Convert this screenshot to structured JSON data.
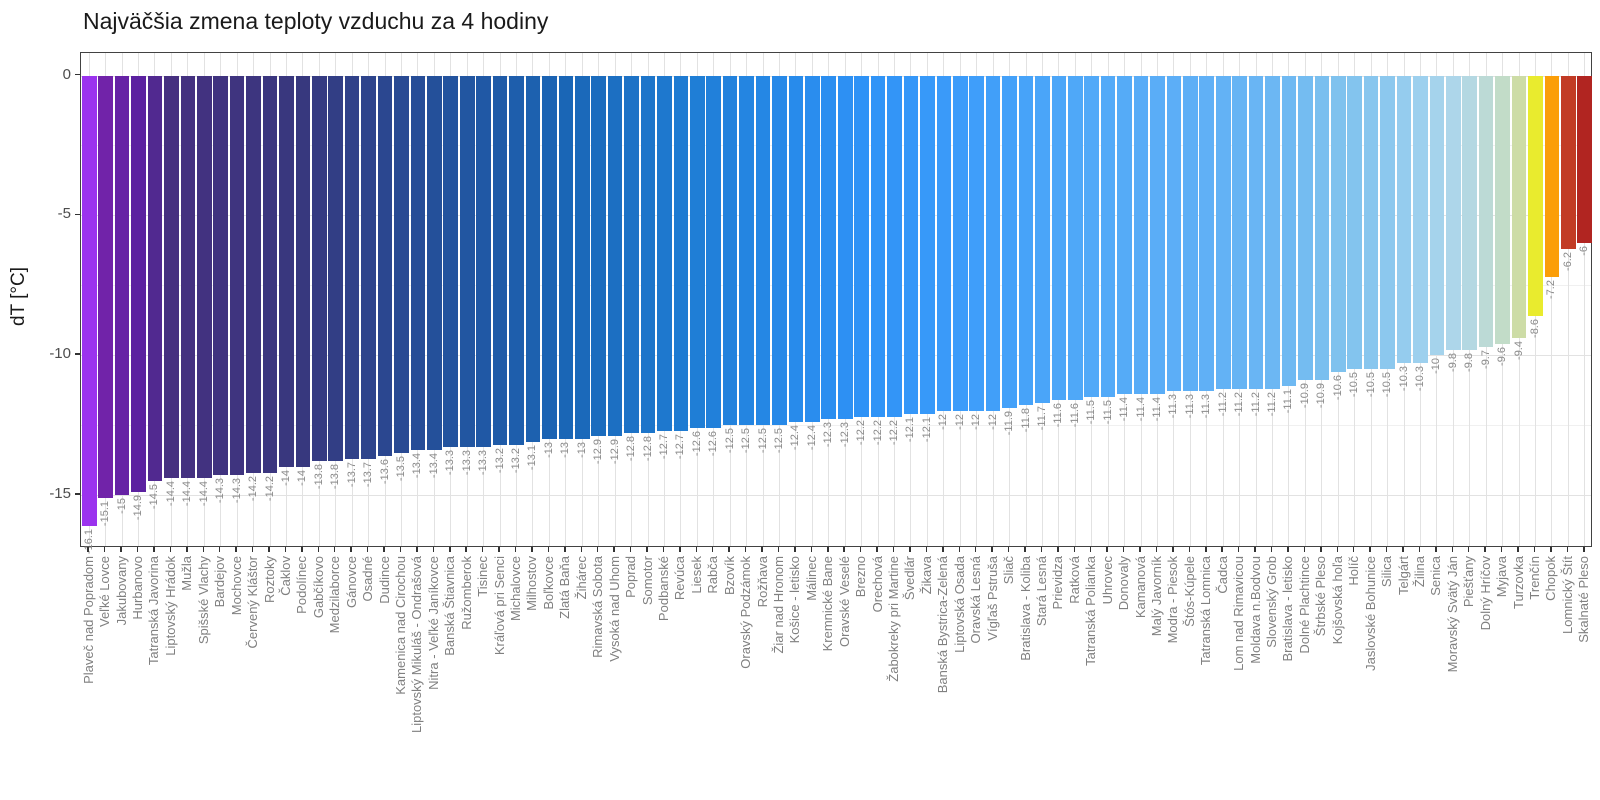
{
  "chart_data": {
    "type": "bar",
    "title": "Najväčšia zmena teploty vzduchu za 4 hodiny",
    "ylabel": "dT [°C]",
    "xlabel": "",
    "ylim": [
      -16.9,
      0.8
    ],
    "yticks": [
      0,
      -5,
      -10,
      -15
    ],
    "yticks_minor": [
      -2.5,
      -7.5,
      -12.5
    ],
    "legend": "none",
    "grid": "major-and-minor",
    "bar_value_labels": "shown below each bar, rotated 90",
    "categories": [
      "Plaveč nad Popradom",
      "Veľké Lovce",
      "Jakubovany",
      "Hurbanovo",
      "Tatranská Javorina",
      "Liptovský Hrádok",
      "Mužla",
      "Spišské Vlachy",
      "Bardejov",
      "Mochovce",
      "Červený Kláštor",
      "Roztoky",
      "Čaklov",
      "Podolínec",
      "Gabčíkovo",
      "Medzilaborce",
      "Gánovce",
      "Osadné",
      "Dudince",
      "Kamenica nad Cirochou",
      "Liptovský Mikuláš - Ondrašová",
      "Nitra - Veľké Janíkovce",
      "Banská Štiavnica",
      "Ružomberok",
      "Tisinec",
      "Kráľová pri Senci",
      "Michalovce",
      "Milhostov",
      "Boľkovce",
      "Zlatá Baňa",
      "Žihárec",
      "Rimavská Sobota",
      "Vysoká nad Uhom",
      "Poprad",
      "Somotor",
      "Podbanské",
      "Revúca",
      "Liesek",
      "Rabča",
      "Bzovík",
      "Oravský Podzámok",
      "Rožňava",
      "Žiar nad Hronom",
      "Košice - letisko",
      "Málinec",
      "Kremnické Bane",
      "Oravské Veselé",
      "Brezno",
      "Orechová",
      "Žabokreky pri Martine",
      "Švedlár",
      "Žikava",
      "Banská Bystrica-Zelená",
      "Liptovská Osada",
      "Oravská Lesná",
      "Vígľaš Pstruša",
      "Sliač",
      "Bratislava - Koliba",
      "Stará Lesná",
      "Prievidza",
      "Ratková",
      "Tatranská Polianka",
      "Uhrovec",
      "Donovaly",
      "Kamanová",
      "Malý Javorník",
      "Modra - Piesok",
      "Štós-Kúpele",
      "Tatranská Lomnica",
      "Čadca",
      "Lom nad Rimavicou",
      "Moldava n.Bodvou",
      "Slovenský Grob",
      "Bratislava - letisko",
      "Dolné Plachtince",
      "Štrbské Pleso",
      "Kojšovská hoľa",
      "Holíč",
      "Jaslovské Bohunice",
      "Silica",
      "Telgárt",
      "Žilina",
      "Senica",
      "Moravský Svätý Ján",
      "Piešťany",
      "Dolný Hríčov",
      "Myjava",
      "Turzovka",
      "Trenčín",
      "Chopok",
      "Lomnický Štít",
      "Skalnaté Pleso"
    ],
    "values": [
      -16.1,
      -15.1,
      -15,
      -14.9,
      -14.5,
      -14.4,
      -14.4,
      -14.4,
      -14.3,
      -14.3,
      -14.2,
      -14.2,
      -14,
      -14,
      -13.8,
      -13.8,
      -13.7,
      -13.7,
      -13.6,
      -13.5,
      -13.4,
      -13.4,
      -13.3,
      -13.3,
      -13.3,
      -13.2,
      -13.2,
      -13.1,
      -13,
      -13,
      -13,
      -12.9,
      -12.9,
      -12.8,
      -12.8,
      -12.7,
      -12.7,
      -12.6,
      -12.6,
      -12.5,
      -12.5,
      -12.5,
      -12.5,
      -12.4,
      -12.4,
      -12.3,
      -12.3,
      -12.2,
      -12.2,
      -12.2,
      -12.1,
      -12.1,
      -12,
      -12,
      -12,
      -12,
      -11.9,
      -11.8,
      -11.7,
      -11.6,
      -11.6,
      -11.5,
      -11.5,
      -11.4,
      -11.4,
      -11.4,
      -11.3,
      -11.3,
      -11.3,
      -11.2,
      -11.2,
      -11.2,
      -11.2,
      -11.1,
      -10.9,
      -10.9,
      -10.6,
      -10.5,
      -10.5,
      -10.5,
      -10.3,
      -10.3,
      -10,
      -9.8,
      -9.8,
      -9.7,
      -9.6,
      -9.4,
      -8.6,
      -7.2,
      -6.2,
      -6
    ],
    "bar_colormap_stops": [
      [
        0,
        "#9B33EE"
      ],
      [
        1,
        "#7123A9"
      ],
      [
        3,
        "#5B21A0"
      ],
      [
        5,
        "#463080"
      ],
      [
        13,
        "#37387E"
      ],
      [
        21,
        "#24509A"
      ],
      [
        29,
        "#1A66B6"
      ],
      [
        37,
        "#1F7ED6"
      ],
      [
        42,
        "#2789E8"
      ],
      [
        47,
        "#2E92F6"
      ],
      [
        53,
        "#3C9CFA"
      ],
      [
        60,
        "#4FA8F8"
      ],
      [
        68,
        "#60B0F6"
      ],
      [
        73,
        "#6FB9F2"
      ],
      [
        76,
        "#7FC2EE"
      ],
      [
        79,
        "#8CC8EE"
      ],
      [
        81,
        "#9DD0EE"
      ],
      [
        83,
        "#ADD6EA"
      ],
      [
        84,
        "#B4D8E2"
      ],
      [
        85,
        "#BCDAD6"
      ],
      [
        86,
        "#C2DCC8"
      ],
      [
        87,
        "#CDDCA6"
      ],
      [
        88,
        "#E9EB2E"
      ],
      [
        89,
        "#FB9E08"
      ],
      [
        90,
        "#C23B25"
      ],
      [
        91,
        "#B12521"
      ]
    ],
    "colors": {
      "panel_border": "#424242",
      "grid_major": "#E2E2E2",
      "grid_minor": "#F0F0F0",
      "tick": "#333333",
      "axis_text": "#4D4D4D",
      "bar_label": "#8A8A8A",
      "x_label": "#808080",
      "title": "#1A1A1A",
      "background": "#FFFFFF"
    }
  }
}
